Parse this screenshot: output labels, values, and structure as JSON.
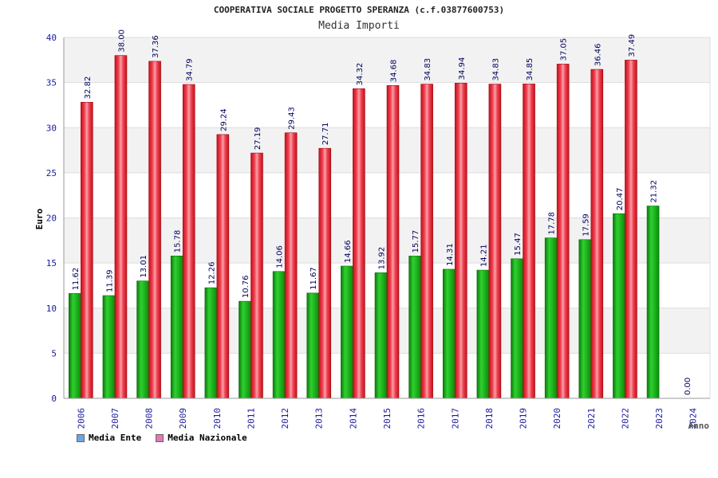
{
  "chart_data": {
    "type": "bar",
    "title": "COOPERATIVA SOCIALE PROGETTO SPERANZA (c.f.03877600753)",
    "subtitle": "Media Importi",
    "xlabel": "Anno",
    "ylabel": "Euro",
    "ylim": [
      0,
      40
    ],
    "yticks": [
      0,
      5,
      10,
      15,
      20,
      25,
      30,
      35,
      40
    ],
    "grid": true,
    "legend_position": "bottom-left",
    "categories": [
      "2006",
      "2007",
      "2008",
      "2009",
      "2010",
      "2011",
      "2012",
      "2013",
      "2014",
      "2015",
      "2016",
      "2017",
      "2018",
      "2019",
      "2020",
      "2021",
      "2022",
      "2023",
      "2024"
    ],
    "series": [
      {
        "name": "Media Ente",
        "legend_color": "#6aa6e8",
        "color": "#1fb81f",
        "values": [
          11.62,
          11.39,
          13.01,
          15.78,
          12.26,
          10.76,
          14.06,
          11.67,
          14.66,
          13.92,
          15.77,
          14.31,
          14.21,
          15.47,
          17.78,
          17.59,
          20.47,
          21.32,
          0.0
        ],
        "labels": [
          "11.62",
          "11.39",
          "13.01",
          "15.78",
          "12.26",
          "10.76",
          "14.06",
          "11.67",
          "14.66",
          "13.92",
          "15.77",
          "14.31",
          "14.21",
          "15.47",
          "17.78",
          "17.59",
          "20.47",
          "21.32",
          "0.00"
        ]
      },
      {
        "name": "Media Nazionale",
        "legend_color": "#e07ab0",
        "color": "#e8202c",
        "values": [
          32.82,
          38.0,
          37.36,
          34.79,
          29.24,
          27.19,
          29.43,
          27.71,
          34.32,
          34.68,
          34.83,
          34.94,
          34.83,
          34.85,
          37.05,
          36.46,
          37.49,
          null,
          null
        ],
        "labels": [
          "32.82",
          "38.00",
          "37.36",
          "34.79",
          "29.24",
          "27.19",
          "29.43",
          "27.71",
          "34.32",
          "34.68",
          "34.83",
          "34.94",
          "34.83",
          "34.85",
          "37.05",
          "36.46",
          "37.49",
          null,
          null
        ]
      }
    ]
  }
}
